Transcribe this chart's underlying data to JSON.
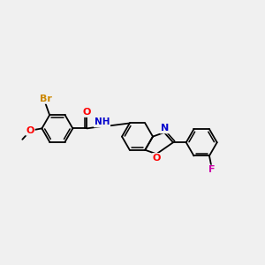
{
  "background_color": "#f0f0f0",
  "bond_color": "#000000",
  "atom_colors": {
    "Br": "#cc8800",
    "O": "#ff0000",
    "N": "#0000cc",
    "F": "#cc00aa",
    "C": "#000000",
    "H": "#0000cc"
  },
  "figsize": [
    3.0,
    3.0
  ],
  "dpi": 100,
  "xlim": [
    -2.2,
    4.2
  ],
  "ylim": [
    -2.0,
    2.0
  ]
}
